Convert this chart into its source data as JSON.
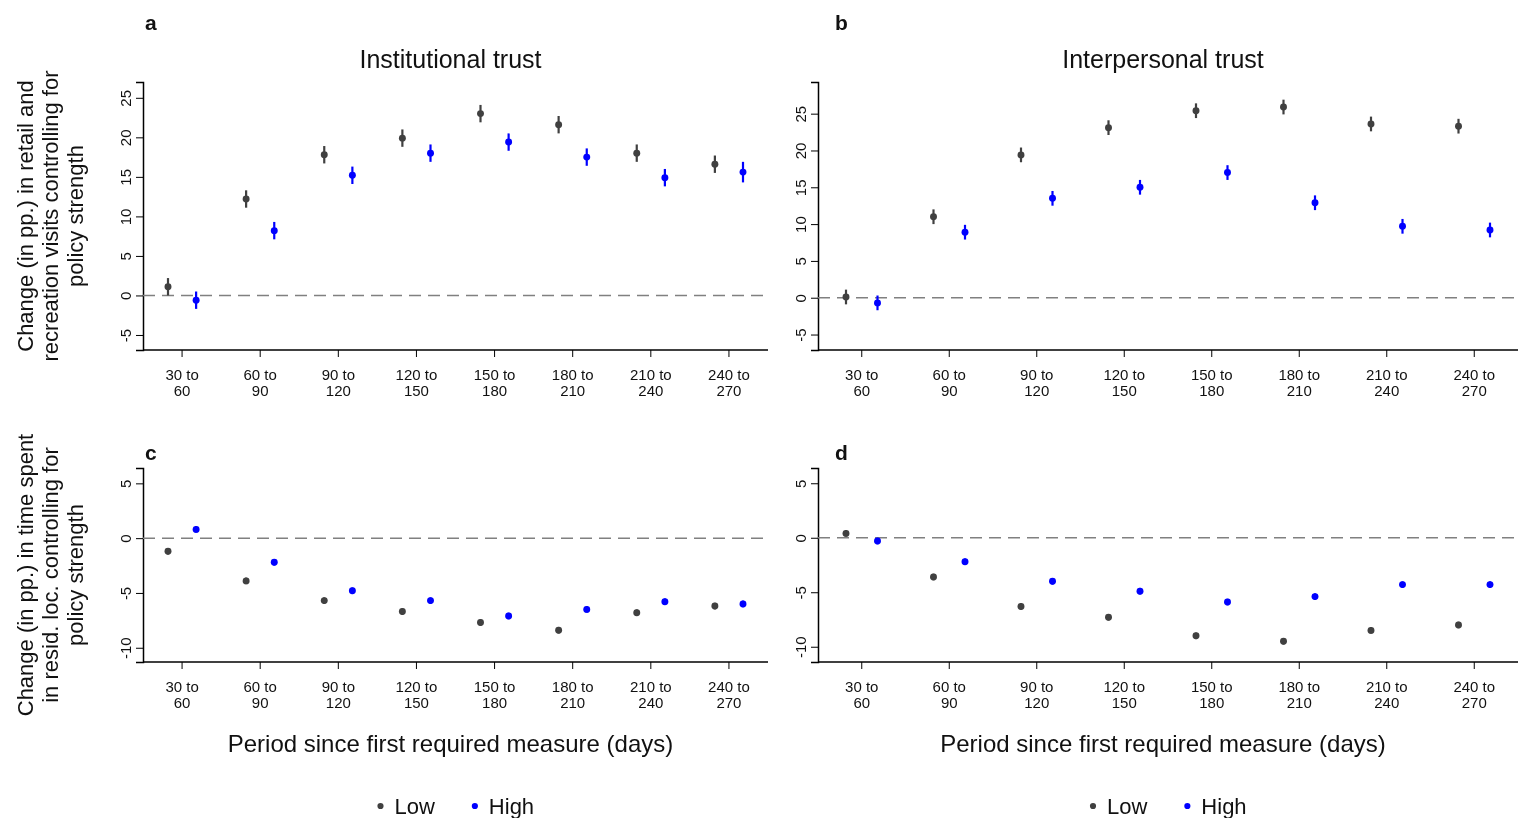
{
  "chart_data": [
    {
      "type": "scatter",
      "title": "Institutional trust",
      "ylabel": "Change (in pp.) in retail and recreation visits controlling for policy strength",
      "annotations": [
        "a"
      ],
      "categories": [
        "30 to 60",
        "60 to 90",
        "90 to 120",
        "120 to 150",
        "150 to 180",
        "180 to 210",
        "210 to 240",
        "240 to 270"
      ],
      "series": [
        {
          "color": "#404040",
          "values": [
            1.1,
            12.2,
            17.8,
            19.9,
            23.0,
            21.6,
            18.0,
            16.6
          ],
          "errors": [
            1.1,
            1.1,
            1.1,
            1.1,
            1.1,
            1.1,
            1.1,
            1.1
          ]
        },
        {
          "color": "#0000ff",
          "values": [
            -0.6,
            8.2,
            15.2,
            18.0,
            19.4,
            17.5,
            14.9,
            15.6
          ],
          "errors": [
            1.1,
            1.1,
            1.1,
            1.1,
            1.1,
            1.1,
            1.1,
            1.3
          ]
        }
      ],
      "ylim": [
        -6.9,
        27
      ],
      "yticks": [
        -5,
        0,
        5,
        10,
        15,
        20,
        25
      ],
      "ref_lines": [
        {
          "axis": "y",
          "value": 0,
          "color": "#808080",
          "line_style": "dashed"
        }
      ],
      "marker": "circle",
      "grid": false,
      "legend": false
    },
    {
      "type": "scatter",
      "title": "Interpersonal trust",
      "annotations": [
        "b"
      ],
      "categories": [
        "30 to 60",
        "60 to 90",
        "90 to 120",
        "120 to 150",
        "150 to 180",
        "180 to 210",
        "210 to 240",
        "240 to 270"
      ],
      "series": [
        {
          "color": "#404040",
          "values": [
            0.1,
            11.0,
            19.4,
            23.1,
            25.4,
            25.9,
            23.6,
            23.3
          ],
          "errors": [
            1.0,
            1.0,
            1.0,
            1.0,
            1.0,
            1.0,
            1.0,
            1.0
          ]
        },
        {
          "color": "#0000ff",
          "values": [
            -0.7,
            8.9,
            13.5,
            15.0,
            17.0,
            12.9,
            9.7,
            9.2
          ],
          "errors": [
            1.0,
            1.0,
            1.0,
            1.0,
            1.0,
            1.0,
            1.0,
            1.0
          ]
        }
      ],
      "ylim": [
        -7.1,
        29.3
      ],
      "yticks": [
        -5,
        0,
        5,
        10,
        15,
        20,
        25
      ],
      "ref_lines": [
        {
          "axis": "y",
          "value": 0,
          "color": "#808080",
          "line_style": "dashed"
        }
      ],
      "marker": "circle",
      "grid": false,
      "legend": false
    },
    {
      "type": "scatter",
      "xlabel": "Period since first required measure (days)",
      "ylabel": "Change (in pp.) in time spent in resid. loc. controlling for policy strength",
      "annotations": [
        "c"
      ],
      "categories": [
        "30 to 60",
        "60 to 90",
        "90 to 120",
        "120 to 150",
        "150 to 180",
        "180 to 210",
        "210 to 240",
        "240 to 270"
      ],
      "series": [
        {
          "name": "Low",
          "color": "#404040",
          "values": [
            -1.2,
            -3.9,
            -5.7,
            -6.7,
            -7.7,
            -8.4,
            -6.8,
            -6.2
          ],
          "errors": [
            0.3,
            0.3,
            0.3,
            0.3,
            0.3,
            0.3,
            0.3,
            0.3
          ]
        },
        {
          "name": "High",
          "color": "#0000ff",
          "values": [
            0.8,
            -2.2,
            -4.8,
            -5.7,
            -7.1,
            -6.5,
            -5.8,
            -6.0
          ],
          "errors": [
            0.3,
            0.3,
            0.3,
            0.3,
            0.3,
            0.3,
            0.3,
            0.3
          ]
        }
      ],
      "ylim": [
        -11.3,
        6.4
      ],
      "yticks": [
        -10,
        -5,
        0,
        5
      ],
      "ref_lines": [
        {
          "axis": "y",
          "value": 0,
          "color": "#808080",
          "line_style": "dashed"
        }
      ],
      "marker": "circle",
      "grid": false,
      "legend": "bottom"
    },
    {
      "type": "scatter",
      "xlabel": "Period since first required measure (days)",
      "annotations": [
        "d"
      ],
      "categories": [
        "30 to 60",
        "60 to 90",
        "90 to 120",
        "120 to 150",
        "150 to 180",
        "180 to 210",
        "210 to 240",
        "240 to 270"
      ],
      "series": [
        {
          "name": "Low",
          "color": "#404040",
          "values": [
            0.4,
            -3.6,
            -6.3,
            -7.3,
            -9.0,
            -9.5,
            -8.5,
            -8.0
          ],
          "errors": [
            0.3,
            0.3,
            0.3,
            0.3,
            0.3,
            0.3,
            0.3,
            0.3
          ]
        },
        {
          "name": "High",
          "color": "#0000ff",
          "values": [
            -0.3,
            -2.2,
            -4.0,
            -4.9,
            -5.9,
            -5.4,
            -4.3,
            -4.3
          ],
          "errors": [
            0.3,
            0.3,
            0.3,
            0.3,
            0.3,
            0.3,
            0.3,
            0.3
          ]
        }
      ],
      "ylim": [
        -11.4,
        6.4
      ],
      "yticks": [
        -10,
        -5,
        0,
        5
      ],
      "ref_lines": [
        {
          "axis": "y",
          "value": 0,
          "color": "#808080",
          "line_style": "dashed"
        }
      ],
      "marker": "circle",
      "grid": false,
      "legend": "bottom"
    }
  ]
}
